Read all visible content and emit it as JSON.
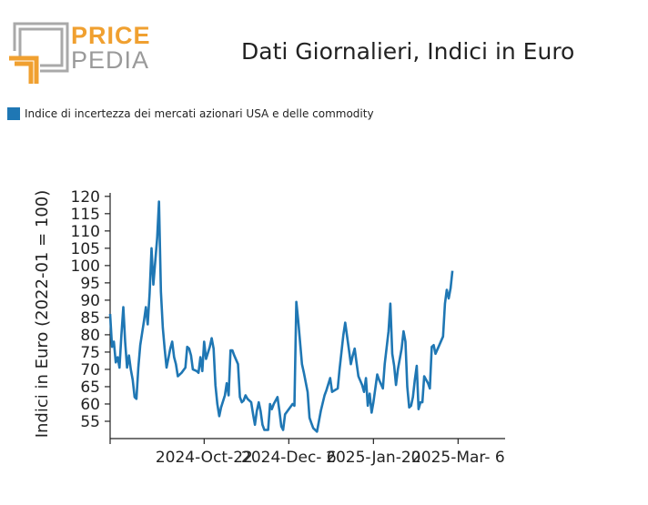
{
  "logo": {
    "word_top": "PRICE",
    "word_bottom": "PEDIA",
    "accent": "#f0a030",
    "gray": "#a9a9a9"
  },
  "colors": {
    "series": "#1f77b4"
  },
  "chart_data": {
    "type": "line",
    "title": "Dati Giornalieri, Indici in Euro",
    "ylabel": "Indici in Euro (2022-01 = 100)",
    "xlabel": "",
    "ylim": [
      50,
      121
    ],
    "yticks": [
      55,
      60,
      65,
      70,
      75,
      80,
      85,
      90,
      95,
      100,
      105,
      110,
      115,
      120
    ],
    "xlim": [
      "2024-09-02",
      "2025-03-31"
    ],
    "xticks": [
      {
        "date": "2024-10-22",
        "label": "2024-Oct-22"
      },
      {
        "date": "2024-12-06",
        "label": "2024-Dec- 6"
      },
      {
        "date": "2025-01-20",
        "label": "2025-Jan-20"
      },
      {
        "date": "2025-03-06",
        "label": "2025-Mar- 6"
      }
    ],
    "legend": "top-left",
    "grid": false,
    "series": [
      {
        "name": "Indice di incertezza dei mercati azionari USA e delle commodity",
        "points": [
          [
            "2024-09-02",
            86
          ],
          [
            "2024-09-03",
            76.5
          ],
          [
            "2024-09-04",
            78
          ],
          [
            "2024-09-05",
            72
          ],
          [
            "2024-09-06",
            73.5
          ],
          [
            "2024-09-07",
            70.5
          ],
          [
            "2024-09-08",
            80
          ],
          [
            "2024-09-09",
            88
          ],
          [
            "2024-09-10",
            78
          ],
          [
            "2024-09-11",
            70.5
          ],
          [
            "2024-09-12",
            74
          ],
          [
            "2024-09-13",
            70
          ],
          [
            "2024-09-14",
            67
          ],
          [
            "2024-09-15",
            62
          ],
          [
            "2024-09-16",
            61.5
          ],
          [
            "2024-09-17",
            70.5
          ],
          [
            "2024-09-18",
            77
          ],
          [
            "2024-09-20",
            84
          ],
          [
            "2024-09-21",
            88
          ],
          [
            "2024-09-22",
            83
          ],
          [
            "2024-09-23",
            92
          ],
          [
            "2024-09-24",
            105
          ],
          [
            "2024-09-25",
            94.5
          ],
          [
            "2024-09-27",
            108
          ],
          [
            "2024-09-28",
            118.5
          ],
          [
            "2024-09-29",
            92.5
          ],
          [
            "2024-09-30",
            82
          ],
          [
            "2024-10-01",
            76
          ],
          [
            "2024-10-02",
            70.5
          ],
          [
            "2024-10-04",
            76
          ],
          [
            "2024-10-05",
            78
          ],
          [
            "2024-10-06",
            73.5
          ],
          [
            "2024-10-07",
            71.5
          ],
          [
            "2024-10-08",
            68
          ],
          [
            "2024-10-10",
            69
          ],
          [
            "2024-10-12",
            70.5
          ],
          [
            "2024-10-13",
            76.5
          ],
          [
            "2024-10-14",
            76
          ],
          [
            "2024-10-15",
            74
          ],
          [
            "2024-10-16",
            70
          ],
          [
            "2024-10-18",
            69.5
          ],
          [
            "2024-10-19",
            69
          ],
          [
            "2024-10-20",
            73.5
          ],
          [
            "2024-10-21",
            69.5
          ],
          [
            "2024-10-22",
            78
          ],
          [
            "2024-10-23",
            73
          ],
          [
            "2024-10-25",
            76.5
          ],
          [
            "2024-10-26",
            79
          ],
          [
            "2024-10-27",
            76
          ],
          [
            "2024-10-28",
            65.5
          ],
          [
            "2024-10-29",
            60
          ],
          [
            "2024-10-30",
            56.5
          ],
          [
            "2024-10-31",
            59
          ],
          [
            "2024-11-02",
            62.5
          ],
          [
            "2024-11-03",
            66
          ],
          [
            "2024-11-04",
            62.5
          ],
          [
            "2024-11-05",
            75.5
          ],
          [
            "2024-11-06",
            75.5
          ],
          [
            "2024-11-07",
            74
          ],
          [
            "2024-11-09",
            71.5
          ],
          [
            "2024-11-10",
            62
          ],
          [
            "2024-11-11",
            60.5
          ],
          [
            "2024-11-12",
            61
          ],
          [
            "2024-11-13",
            62.5
          ],
          [
            "2024-11-14",
            61.5
          ],
          [
            "2024-11-16",
            60.5
          ],
          [
            "2024-11-17",
            57
          ],
          [
            "2024-11-18",
            54
          ],
          [
            "2024-11-19",
            58
          ],
          [
            "2024-11-20",
            60.5
          ],
          [
            "2024-11-21",
            58
          ],
          [
            "2024-11-22",
            54
          ],
          [
            "2024-11-23",
            52.5
          ],
          [
            "2024-11-25",
            52.5
          ],
          [
            "2024-11-26",
            60
          ],
          [
            "2024-11-27",
            58.5
          ],
          [
            "2024-11-28",
            60
          ],
          [
            "2024-11-30",
            62
          ],
          [
            "2024-12-01",
            58
          ],
          [
            "2024-12-02",
            53.5
          ],
          [
            "2024-12-03",
            52.5
          ],
          [
            "2024-12-04",
            57
          ],
          [
            "2024-12-06",
            58.5
          ],
          [
            "2024-12-08",
            60
          ],
          [
            "2024-12-09",
            59.5
          ],
          [
            "2024-12-10",
            89.5
          ],
          [
            "2024-12-11",
            84
          ],
          [
            "2024-12-13",
            71.5
          ],
          [
            "2024-12-14",
            69
          ],
          [
            "2024-12-16",
            63.5
          ],
          [
            "2024-12-17",
            56
          ],
          [
            "2024-12-18",
            54.5
          ],
          [
            "2024-12-19",
            53
          ],
          [
            "2024-12-21",
            52
          ],
          [
            "2024-12-22",
            55
          ],
          [
            "2024-12-23",
            58
          ],
          [
            "2024-12-25",
            62.5
          ],
          [
            "2024-12-26",
            64
          ],
          [
            "2024-12-28",
            67.5
          ],
          [
            "2024-12-29",
            63.5
          ],
          [
            "2025-01-01",
            64.5
          ],
          [
            "2025-01-02",
            70
          ],
          [
            "2025-01-04",
            80
          ],
          [
            "2025-01-05",
            83.5
          ],
          [
            "2025-01-06",
            79.5
          ],
          [
            "2025-01-07",
            75.5
          ],
          [
            "2025-01-08",
            71.5
          ],
          [
            "2025-01-09",
            74
          ],
          [
            "2025-01-10",
            76
          ],
          [
            "2025-01-11",
            72
          ],
          [
            "2025-01-12",
            68
          ],
          [
            "2025-01-14",
            65.5
          ],
          [
            "2025-01-15",
            63.5
          ],
          [
            "2025-01-16",
            67.5
          ],
          [
            "2025-01-17",
            59.5
          ],
          [
            "2025-01-18",
            63
          ],
          [
            "2025-01-19",
            57.5
          ],
          [
            "2025-01-20",
            60.5
          ],
          [
            "2025-01-22",
            68.5
          ],
          [
            "2025-01-23",
            67
          ],
          [
            "2025-01-25",
            64.5
          ],
          [
            "2025-01-26",
            71.5
          ],
          [
            "2025-01-28",
            81
          ],
          [
            "2025-01-29",
            89
          ],
          [
            "2025-01-30",
            74.5
          ],
          [
            "2025-01-31",
            71
          ],
          [
            "2025-02-01",
            65.5
          ],
          [
            "2025-02-02",
            70
          ],
          [
            "2025-02-04",
            76
          ],
          [
            "2025-02-05",
            81
          ],
          [
            "2025-02-06",
            78
          ],
          [
            "2025-02-07",
            65
          ],
          [
            "2025-02-08",
            59
          ],
          [
            "2025-02-09",
            59.5
          ],
          [
            "2025-02-10",
            62
          ],
          [
            "2025-02-11",
            67
          ],
          [
            "2025-02-12",
            71
          ],
          [
            "2025-02-13",
            58.5
          ],
          [
            "2025-02-14",
            60.5
          ],
          [
            "2025-02-15",
            60.5
          ],
          [
            "2025-02-16",
            68
          ],
          [
            "2025-02-17",
            67
          ],
          [
            "2025-02-18",
            66
          ],
          [
            "2025-02-19",
            64.5
          ],
          [
            "2025-02-20",
            76.5
          ],
          [
            "2025-02-21",
            77
          ],
          [
            "2025-02-22",
            74.5
          ],
          [
            "2025-02-24",
            77
          ],
          [
            "2025-02-26",
            79.5
          ],
          [
            "2025-02-27",
            89
          ],
          [
            "2025-02-28",
            93
          ],
          [
            "2025-03-01",
            90.5
          ],
          [
            "2025-03-02",
            93.5
          ],
          [
            "2025-03-03",
            98.5
          ]
        ]
      }
    ]
  }
}
